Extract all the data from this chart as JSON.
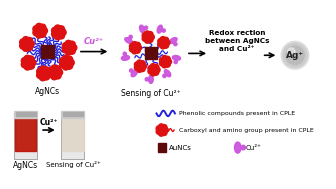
{
  "bg_color": "#ffffff",
  "top_row": {
    "agnc_label": "AgNCs",
    "sensing_label": "Sensing of Cu²⁺",
    "cu2plus_arrow_label": "Cu²⁺",
    "redox_text": "Redox rection\nbetween AgNCs\nand Cu²⁺",
    "agplus_label": "Ag⁺"
  },
  "bottom_row": {
    "agnc_label": "AgNCs",
    "sensing_label": "Sensing of Cu²⁺",
    "cu2plus_arrow_label": "Cu²⁺"
  },
  "legend": {
    "phenolic_text": "Phenolic compounds present in CPLE",
    "carboxyl_text": "Carboxyl and amino group present in CPLE",
    "auncs_text": "AuNCs",
    "cu2plus_text": "Cu²⁺"
  },
  "colors": {
    "dark_red": "#5C0A0A",
    "blue": "#2222DD",
    "red": "#DD1111",
    "purple": "#CC55DD",
    "light_purple": "#CC77EE",
    "arrow_color": "#000000",
    "silver_gray": "#BBBBBB",
    "silver_light": "#DDDDDD"
  }
}
